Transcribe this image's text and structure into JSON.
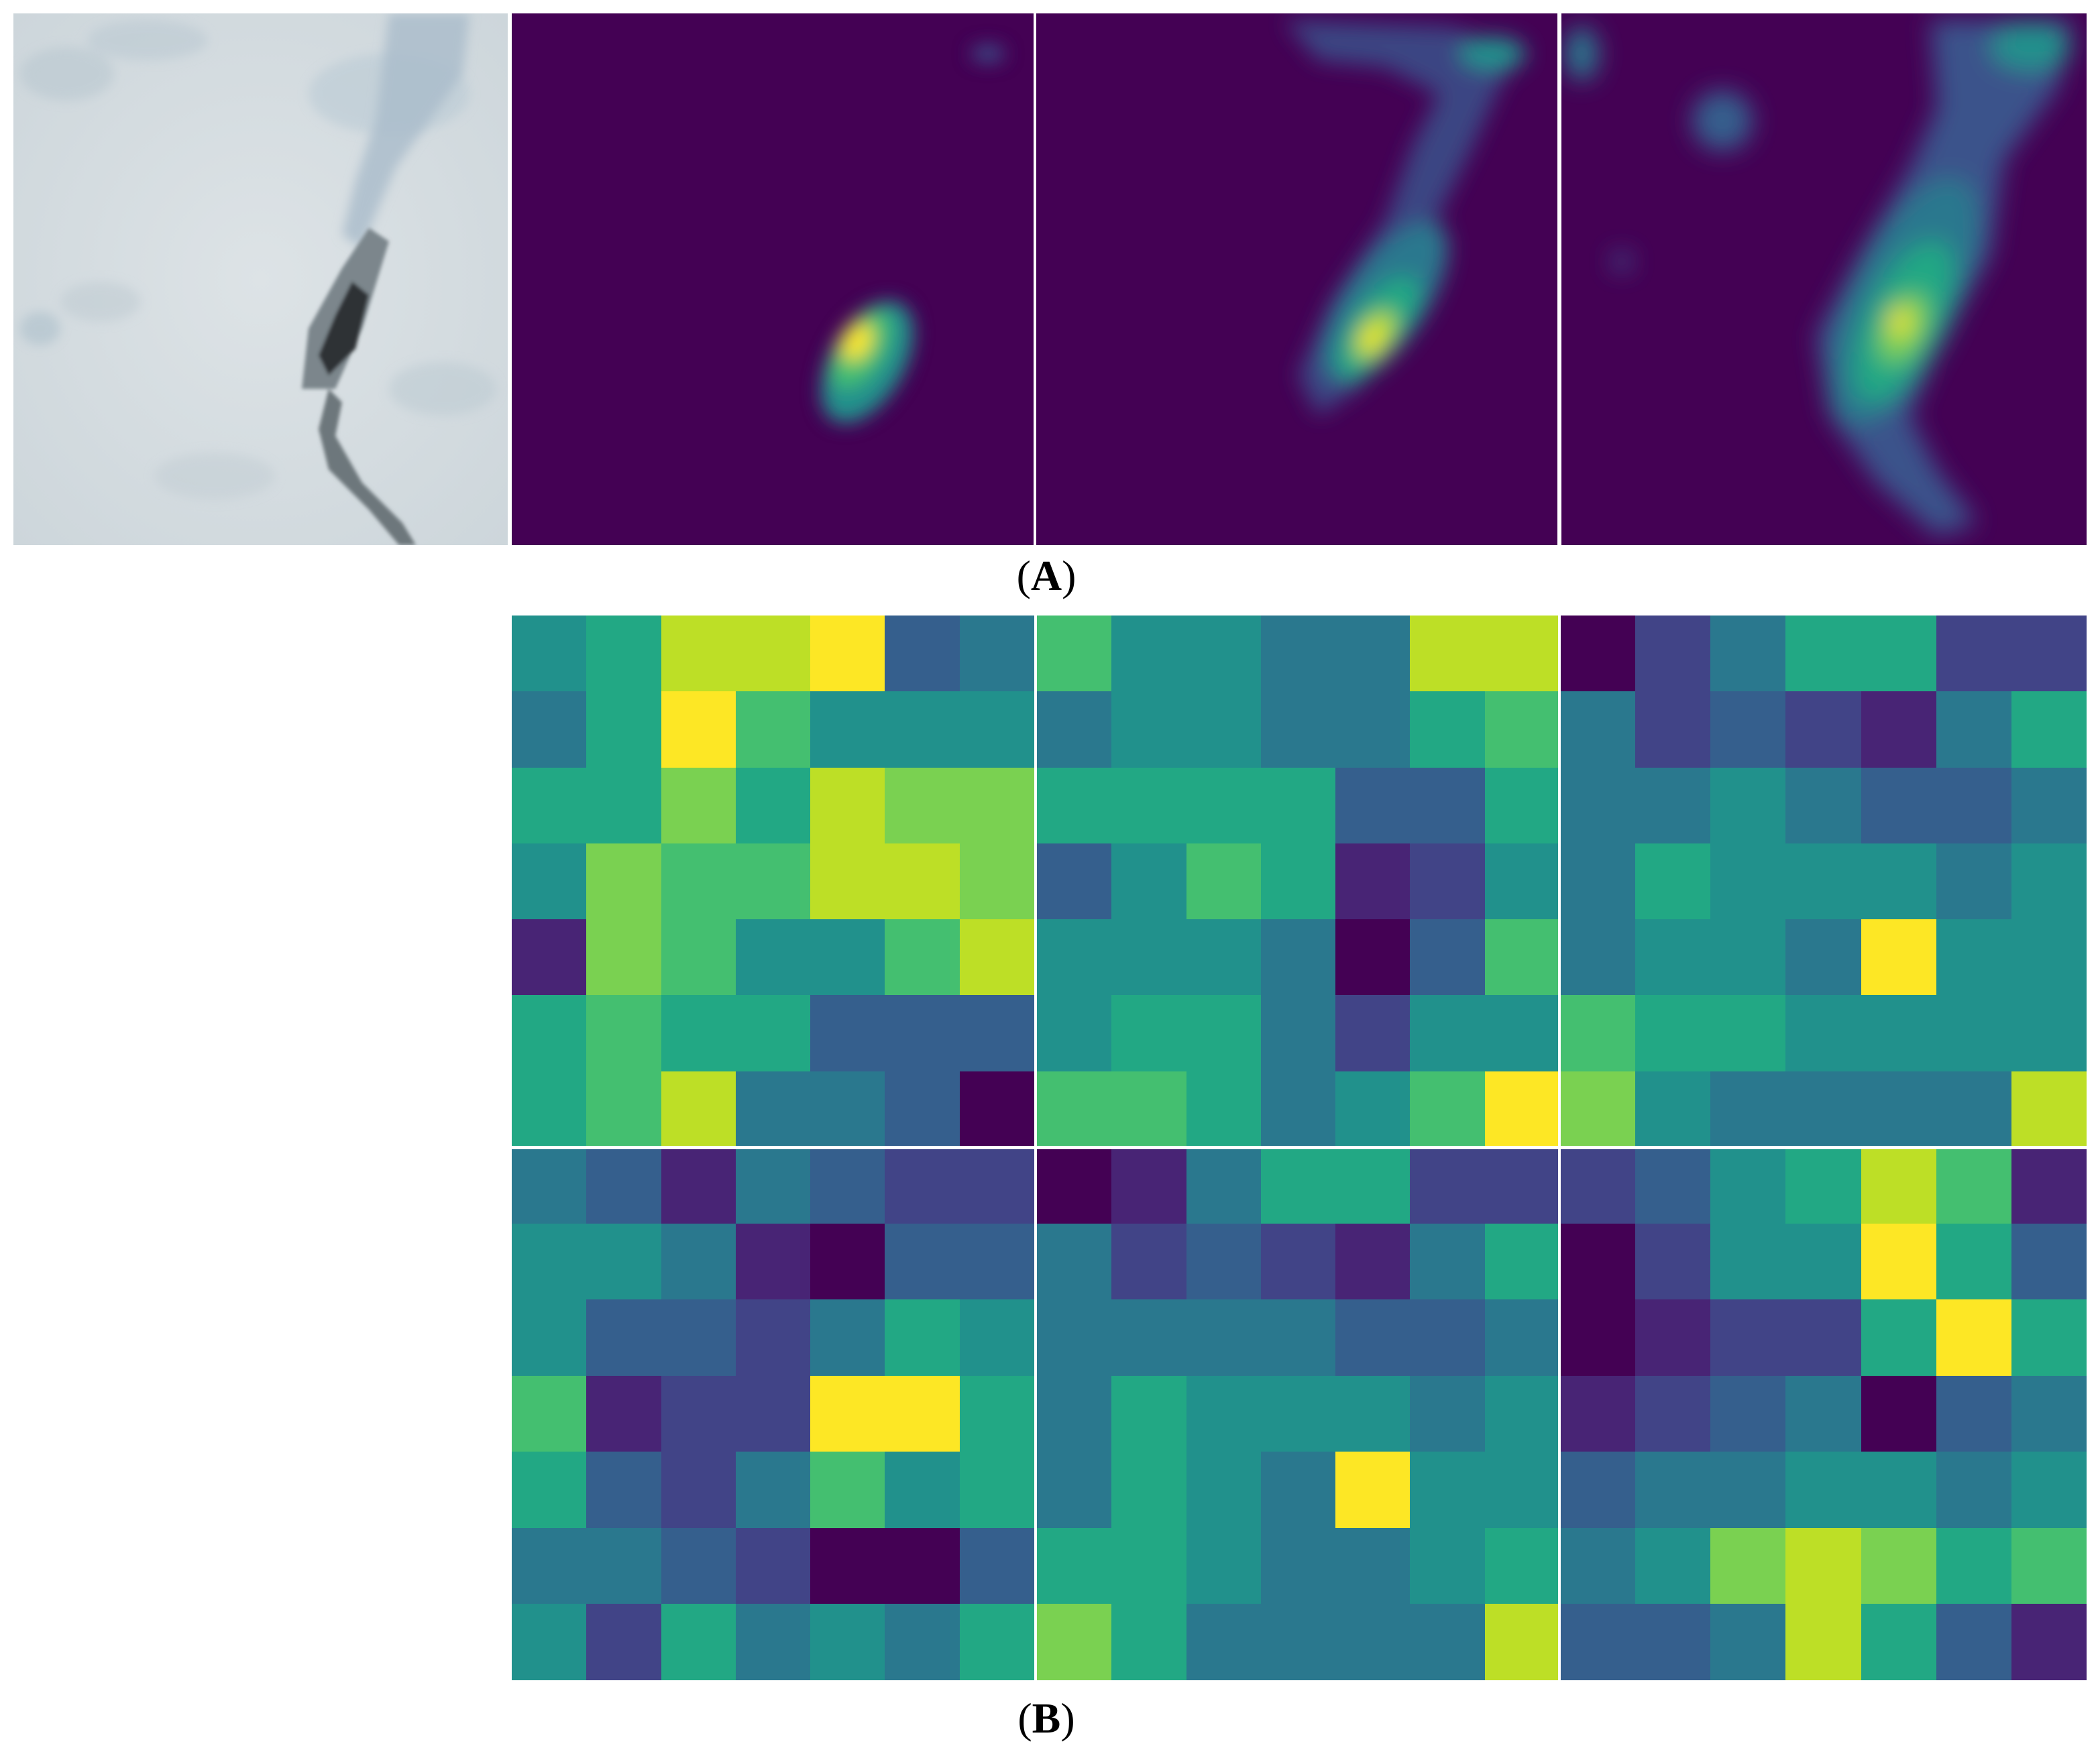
{
  "labels": {
    "a": "A",
    "b": "B"
  },
  "colors": {
    "viridis": [
      "#440154",
      "#482475",
      "#414487",
      "#355f8d",
      "#2a788e",
      "#21918c",
      "#22a884",
      "#44bf70",
      "#7ad151",
      "#bddf26",
      "#fde725"
    ],
    "background": "#ffffff"
  },
  "heatmaps": [
    [
      [
        5,
        6,
        9,
        9,
        10,
        3,
        4
      ],
      [
        4,
        6,
        10,
        7,
        5,
        5,
        5
      ],
      [
        6,
        6,
        8,
        6,
        9,
        8,
        8
      ],
      [
        5,
        8,
        7,
        7,
        9,
        9,
        8
      ],
      [
        1,
        8,
        7,
        5,
        5,
        7,
        9
      ],
      [
        6,
        7,
        6,
        6,
        3,
        3,
        3
      ],
      [
        6,
        7,
        9,
        4,
        4,
        3,
        0
      ]
    ],
    [
      [
        7,
        5,
        5,
        4,
        4,
        9,
        9
      ],
      [
        4,
        5,
        5,
        4,
        4,
        6,
        7
      ],
      [
        6,
        6,
        6,
        6,
        3,
        3,
        6
      ],
      [
        3,
        5,
        7,
        6,
        1,
        2,
        5
      ],
      [
        5,
        5,
        5,
        4,
        0,
        3,
        7
      ],
      [
        5,
        6,
        6,
        4,
        2,
        5,
        5
      ],
      [
        7,
        7,
        6,
        4,
        5,
        7,
        10
      ]
    ],
    [
      [
        0,
        2,
        4,
        6,
        6,
        2,
        2
      ],
      [
        4,
        2,
        3,
        2,
        1,
        4,
        6
      ],
      [
        4,
        4,
        5,
        4,
        3,
        3,
        4
      ],
      [
        4,
        6,
        5,
        5,
        5,
        4,
        5
      ],
      [
        4,
        5,
        5,
        4,
        10,
        5,
        5
      ],
      [
        7,
        6,
        6,
        5,
        5,
        5,
        5
      ],
      [
        8,
        5,
        4,
        4,
        4,
        4,
        9
      ]
    ],
    [
      [
        4,
        3,
        1,
        4,
        3,
        2,
        2
      ],
      [
        5,
        5,
        4,
        1,
        0,
        3,
        3
      ],
      [
        5,
        3,
        3,
        2,
        4,
        6,
        5
      ],
      [
        7,
        1,
        2,
        2,
        10,
        10,
        6
      ],
      [
        6,
        3,
        2,
        4,
        7,
        5,
        6
      ],
      [
        4,
        4,
        3,
        2,
        0,
        0,
        3
      ],
      [
        5,
        2,
        6,
        4,
        5,
        4,
        6
      ]
    ],
    [
      [
        0,
        1,
        4,
        6,
        6,
        2,
        2
      ],
      [
        4,
        2,
        3,
        2,
        1,
        4,
        6
      ],
      [
        4,
        4,
        4,
        4,
        3,
        3,
        4
      ],
      [
        4,
        6,
        5,
        5,
        5,
        4,
        5
      ],
      [
        4,
        6,
        5,
        4,
        10,
        5,
        5
      ],
      [
        6,
        6,
        5,
        4,
        4,
        5,
        6
      ],
      [
        8,
        6,
        4,
        4,
        4,
        4,
        9
      ]
    ],
    [
      [
        2,
        3,
        5,
        6,
        9,
        7,
        1
      ],
      [
        0,
        2,
        5,
        5,
        10,
        6,
        3
      ],
      [
        0,
        1,
        2,
        2,
        6,
        10,
        6
      ],
      [
        1,
        2,
        3,
        4,
        0,
        3,
        4
      ],
      [
        3,
        4,
        4,
        5,
        5,
        4,
        5
      ],
      [
        4,
        5,
        8,
        9,
        8,
        6,
        7
      ],
      [
        3,
        3,
        4,
        9,
        6,
        3,
        1
      ]
    ]
  ]
}
